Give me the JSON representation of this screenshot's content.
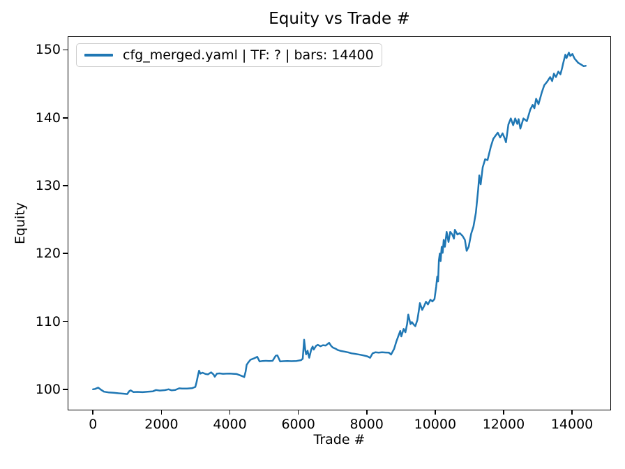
{
  "chart_data": {
    "type": "line",
    "title": "Equity vs Trade #",
    "xlabel": "Trade #",
    "ylabel": "Equity",
    "xlim": [
      -720,
      15120
    ],
    "ylim": [
      97.0,
      151.9
    ],
    "xticks": [
      0,
      2000,
      4000,
      6000,
      8000,
      10000,
      12000,
      14000
    ],
    "yticks": [
      100,
      110,
      120,
      130,
      140,
      150
    ],
    "grid": false,
    "legend": {
      "position": "upper-left",
      "entries": [
        "cfg_merged.yaml | TF: ? | bars: 14400"
      ]
    },
    "colors": {
      "line": "#1f77b4",
      "axes": "#000000",
      "legend_border": "#cccccc",
      "background": "#ffffff"
    },
    "series": [
      {
        "name": "cfg_merged.yaml | TF: ? | bars: 14400",
        "x": [
          0,
          60,
          150,
          230,
          320,
          450,
          600,
          750,
          900,
          1000,
          1060,
          1100,
          1180,
          1300,
          1450,
          1600,
          1750,
          1842,
          1950,
          2100,
          2210,
          2300,
          2400,
          2520,
          2600,
          2750,
          2900,
          2990,
          3030,
          3070,
          3100,
          3140,
          3200,
          3290,
          3360,
          3450,
          3520,
          3560,
          3620,
          3700,
          3800,
          3900,
          4000,
          4100,
          4200,
          4280,
          4360,
          4420,
          4460,
          4490,
          4530,
          4600,
          4700,
          4800,
          4870,
          4960,
          5050,
          5150,
          5250,
          5340,
          5390,
          5470,
          5560,
          5680,
          5800,
          5950,
          6080,
          6130,
          6170,
          6210,
          6230,
          6270,
          6320,
          6380,
          6420,
          6450,
          6520,
          6570,
          6650,
          6720,
          6800,
          6900,
          6960,
          7010,
          7100,
          7150,
          7250,
          7350,
          7450,
          7560,
          7680,
          7800,
          7900,
          8020,
          8100,
          8170,
          8250,
          8350,
          8450,
          8550,
          8650,
          8710,
          8800,
          8870,
          8920,
          8980,
          9010,
          9080,
          9130,
          9180,
          9215,
          9280,
          9320,
          9380,
          9420,
          9480,
          9520,
          9555,
          9620,
          9680,
          9730,
          9790,
          9860,
          9920,
          9980,
          10030,
          10060,
          10085,
          10110,
          10135,
          10160,
          10190,
          10220,
          10250,
          10285,
          10336,
          10390,
          10440,
          10500,
          10550,
          10575,
          10650,
          10720,
          10800,
          10870,
          10920,
          10980,
          11050,
          11120,
          11190,
          11255,
          11290,
          11330,
          11390,
          11460,
          11530,
          11570,
          11630,
          11700,
          11770,
          11830,
          11900,
          11970,
          12030,
          12070,
          12140,
          12210,
          12280,
          12340,
          12400,
          12440,
          12490,
          12580,
          12680,
          12780,
          12850,
          12900,
          12950,
          13020,
          13120,
          13190,
          13270,
          13360,
          13420,
          13470,
          13530,
          13600,
          13660,
          13710,
          13740,
          13805,
          13840,
          13907,
          13950,
          14010,
          14077,
          14180,
          14280,
          14340,
          14400
        ],
        "y": [
          100.0,
          100.05,
          100.25,
          99.95,
          99.65,
          99.55,
          99.5,
          99.42,
          99.35,
          99.3,
          99.72,
          99.85,
          99.6,
          99.62,
          99.58,
          99.65,
          99.7,
          99.9,
          99.82,
          99.88,
          100.0,
          99.85,
          99.9,
          100.15,
          100.1,
          100.12,
          100.18,
          100.35,
          101.1,
          102.1,
          102.75,
          102.3,
          102.45,
          102.25,
          102.2,
          102.5,
          102.2,
          101.85,
          102.3,
          102.35,
          102.28,
          102.3,
          102.32,
          102.28,
          102.25,
          102.1,
          101.95,
          101.8,
          102.6,
          103.6,
          103.9,
          104.35,
          104.55,
          104.78,
          104.1,
          104.18,
          104.2,
          104.18,
          104.2,
          104.95,
          105.0,
          104.1,
          104.15,
          104.18,
          104.15,
          104.18,
          104.3,
          104.5,
          107.3,
          105.6,
          105.15,
          105.7,
          104.65,
          105.9,
          106.3,
          105.85,
          106.4,
          106.55,
          106.35,
          106.5,
          106.45,
          106.85,
          106.4,
          106.15,
          105.95,
          105.8,
          105.65,
          105.55,
          105.45,
          105.3,
          105.2,
          105.1,
          105.0,
          104.85,
          104.65,
          105.3,
          105.45,
          105.4,
          105.45,
          105.42,
          105.4,
          105.12,
          105.95,
          107.1,
          107.8,
          108.6,
          107.8,
          108.9,
          108.4,
          109.6,
          111.0,
          109.6,
          109.9,
          109.5,
          109.3,
          110.2,
          111.5,
          112.7,
          111.7,
          112.3,
          112.9,
          112.5,
          113.2,
          112.95,
          113.3,
          115.1,
          116.6,
          115.9,
          119.0,
          120.0,
          118.9,
          121.0,
          120.1,
          122.0,
          121.0,
          123.2,
          121.7,
          123.2,
          122.8,
          122.2,
          123.5,
          122.8,
          123.0,
          122.6,
          122.0,
          120.4,
          121.0,
          122.9,
          124.0,
          126.0,
          129.3,
          131.5,
          130.2,
          132.7,
          133.9,
          133.75,
          134.6,
          135.8,
          136.9,
          137.4,
          137.8,
          137.1,
          137.7,
          137.0,
          136.4,
          139.0,
          139.9,
          138.9,
          139.9,
          139.1,
          139.8,
          138.4,
          139.9,
          139.5,
          141.2,
          141.9,
          141.4,
          142.8,
          142.0,
          143.8,
          144.8,
          145.3,
          146.0,
          145.4,
          146.5,
          146.0,
          146.8,
          146.4,
          147.3,
          148.0,
          149.3,
          148.8,
          149.6,
          149.1,
          149.4,
          148.7,
          148.1,
          147.8,
          147.6,
          147.65
        ]
      }
    ]
  }
}
